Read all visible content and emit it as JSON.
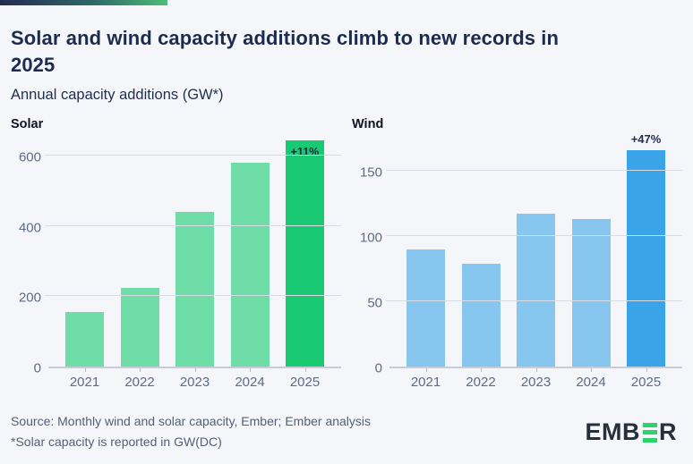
{
  "page": {
    "background": "#f4f6fa",
    "accent_bar": {
      "gradient_start": "#252b52",
      "gradient_end": "#4dbc79"
    }
  },
  "header": {
    "title": "Solar and wind capacity additions climb to new records in 2025",
    "subtitle": "Annual capacity additions (GW*)"
  },
  "chart_data": [
    {
      "type": "bar",
      "title": "Solar",
      "categories": [
        "2021",
        "2022",
        "2023",
        "2024",
        "2025"
      ],
      "values": [
        155,
        225,
        440,
        580,
        645
      ],
      "ylim": [
        0,
        650
      ],
      "yticks": [
        0,
        200,
        400,
        600
      ],
      "grid": true,
      "legend": "none",
      "bar_color": "#6edda7",
      "highlight_index": 4,
      "highlight_color": "#1ac973",
      "annotation": {
        "text": "+11%",
        "position": "inside",
        "index": 4
      },
      "xlabel": "",
      "ylabel": ""
    },
    {
      "type": "bar",
      "title": "Wind",
      "categories": [
        "2021",
        "2022",
        "2023",
        "2024",
        "2025"
      ],
      "values": [
        90,
        79,
        117,
        113,
        166
      ],
      "ylim": [
        0,
        175
      ],
      "yticks": [
        0,
        50,
        100,
        150
      ],
      "grid": true,
      "legend": "none",
      "bar_color": "#87c6ee",
      "highlight_index": 4,
      "highlight_color": "#3aa4e9",
      "annotation": {
        "text": "+47%",
        "position": "above",
        "index": 4
      },
      "xlabel": "",
      "ylabel": ""
    }
  ],
  "footer": {
    "source": "Source: Monthly wind and solar capacity, Ember; Ember analysis",
    "note": "*Solar capacity is reported in GW(DC)",
    "logo": {
      "prefix": "EMB",
      "suffix": "R",
      "bar_color": "#2bd36a"
    }
  }
}
